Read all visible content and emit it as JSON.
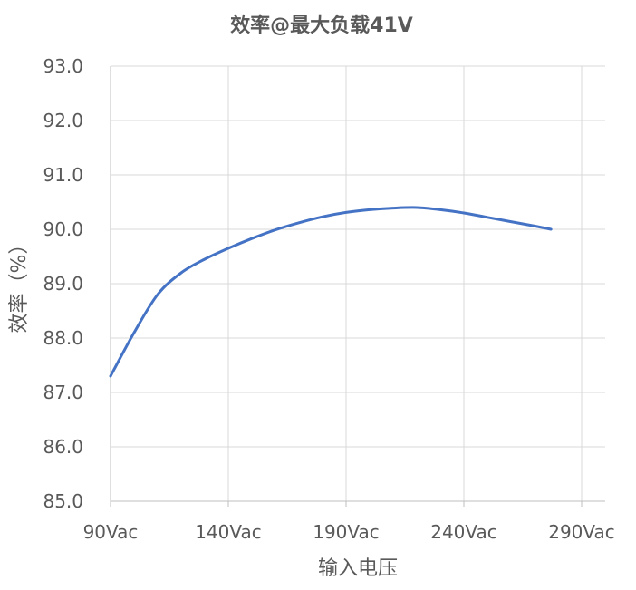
{
  "chart_data": {
    "type": "line",
    "title": "效率@最大负载41V",
    "xlabel": "输入电压",
    "ylabel": "效率（%）",
    "x_ticks": [
      90,
      140,
      190,
      240,
      290
    ],
    "x_tick_labels": [
      "90Vac",
      "140Vac",
      "190Vac",
      "240Vac",
      "290Vac"
    ],
    "xlim": [
      90,
      290
    ],
    "ylim": [
      85.0,
      93.0
    ],
    "y_ticks": [
      85.0,
      86.0,
      87.0,
      88.0,
      89.0,
      90.0,
      91.0,
      92.0,
      93.0
    ],
    "y_tick_labels": [
      "85.0",
      "86.0",
      "87.0",
      "88.0",
      "89.0",
      "90.0",
      "91.0",
      "92.0",
      "93.0"
    ],
    "grid": true,
    "legend": "none",
    "series": [
      {
        "color": "#4472C4",
        "x": [
          90,
          100,
          110,
          120,
          130,
          140,
          150,
          160,
          170,
          180,
          190,
          200,
          210,
          220,
          230,
          240,
          250,
          260,
          270,
          277
        ],
        "values": [
          87.3,
          88.1,
          88.8,
          89.2,
          89.45,
          89.65,
          89.83,
          89.99,
          90.12,
          90.23,
          90.31,
          90.36,
          90.39,
          90.4,
          90.36,
          90.3,
          90.22,
          90.14,
          90.06,
          90.0
        ]
      }
    ]
  }
}
